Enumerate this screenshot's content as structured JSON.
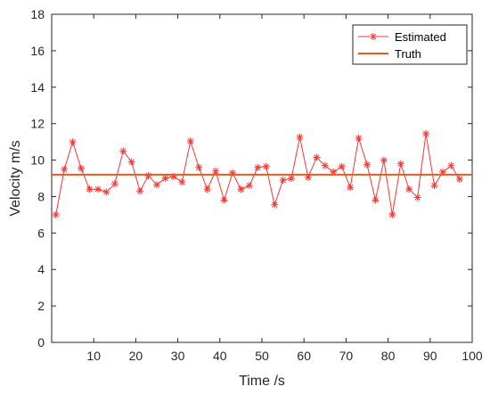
{
  "colors": {
    "estimated": "#ff3333",
    "truth": "#e65c1a",
    "axis": "#262626",
    "background": "#ffffff"
  },
  "chart_data": {
    "type": "line",
    "title": "",
    "xlabel": "Time /s",
    "ylabel": "Velocity m/s",
    "xlim": [
      0,
      100
    ],
    "ylim": [
      0,
      18
    ],
    "xticks": [
      10,
      20,
      30,
      40,
      50,
      60,
      70,
      80,
      90,
      100
    ],
    "yticks": [
      0,
      2,
      4,
      6,
      8,
      10,
      12,
      14,
      16,
      18
    ],
    "grid": false,
    "legend_position": "top-right",
    "series": [
      {
        "name": "Estimated",
        "marker": "asterisk",
        "x": [
          1,
          3,
          5,
          7,
          9,
          11,
          13,
          15,
          17,
          19,
          21,
          23,
          25,
          27,
          29,
          31,
          33,
          35,
          37,
          39,
          41,
          43,
          45,
          47,
          49,
          51,
          53,
          55,
          57,
          59,
          61,
          63,
          65,
          67,
          69,
          71,
          73,
          75,
          77,
          79,
          81,
          83,
          85,
          87,
          89,
          91,
          93,
          95,
          97
        ],
        "y": [
          7.0,
          9.5,
          11.0,
          9.55,
          8.4,
          8.4,
          8.25,
          8.7,
          10.5,
          9.9,
          8.3,
          9.15,
          8.65,
          9.0,
          9.1,
          8.8,
          11.05,
          9.6,
          8.4,
          9.4,
          7.8,
          9.3,
          8.4,
          8.6,
          9.6,
          9.65,
          7.55,
          8.9,
          9.0,
          11.25,
          9.05,
          10.15,
          9.7,
          9.35,
          9.65,
          8.5,
          11.2,
          9.75,
          7.8,
          10.0,
          7.0,
          9.8,
          8.4,
          7.95,
          11.45,
          8.6,
          9.35,
          9.7,
          8.95
        ]
      },
      {
        "name": "Truth",
        "x": [
          0,
          100
        ],
        "y": [
          9.2,
          9.2
        ]
      }
    ]
  }
}
